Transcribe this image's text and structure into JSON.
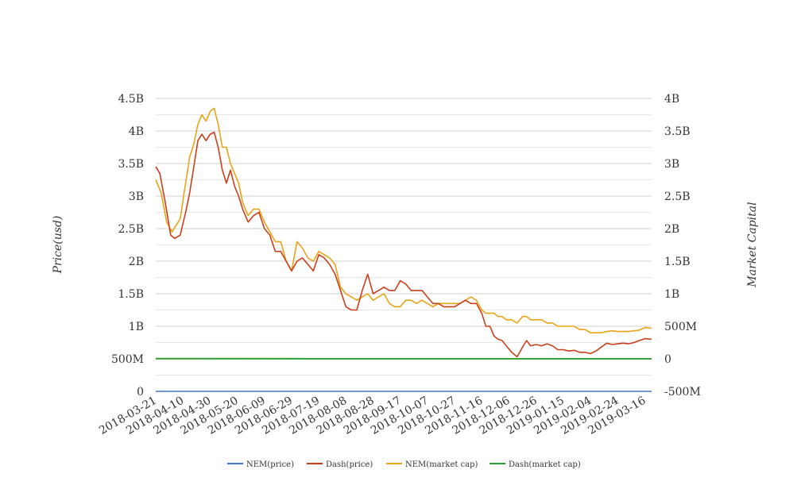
{
  "chart_data": {
    "type": "line",
    "title": "",
    "ylabel_left": "Price(usd)",
    "ylabel_right": "Market Capital",
    "grid": true,
    "legend_position": "bottom",
    "y_left": {
      "min": 0,
      "max": 4500000000,
      "ticks": [
        0,
        500000000,
        1000000000,
        1500000000,
        2000000000,
        2500000000,
        3000000000,
        3500000000,
        4000000000,
        4500000000
      ],
      "tick_labels": [
        "0",
        "500M",
        "1B",
        "1.5B",
        "2B",
        "2.5B",
        "3B",
        "3.5B",
        "4B",
        "4.5B"
      ]
    },
    "y_right": {
      "min": -500000000,
      "max": 4000000000,
      "ticks": [
        -500000000,
        0,
        500000000,
        1000000000,
        1500000000,
        2000000000,
        2500000000,
        3000000000,
        3500000000,
        4000000000
      ],
      "tick_labels": [
        "-500M",
        "0",
        "500M",
        "1B",
        "1.5B",
        "2B",
        "2.5B",
        "3B",
        "3.5B",
        "4B"
      ]
    },
    "x_axis": {
      "start": "2018-03-21",
      "end": "2019-03-21",
      "tick_labels": [
        "2018-03-21",
        "2018-04-10",
        "2018-04-30",
        "2018-05-20",
        "2018-06-09",
        "2018-06-29",
        "2018-07-19",
        "2018-08-08",
        "2018-08-28",
        "2018-09-17",
        "2018-10-07",
        "2018-10-27",
        "2018-11-16",
        "2018-12-06",
        "2018-12-26",
        "2019-01-15",
        "2019-02-04",
        "2019-02-24",
        "2019-03-16"
      ]
    },
    "series": [
      {
        "name": "NEM(price)",
        "axis": "left",
        "color": "#4472c4",
        "points": [
          [
            "2018-03-21",
            0.3
          ],
          [
            "2019-03-21",
            0.06
          ]
        ]
      },
      {
        "name": "Dash(price)",
        "axis": "left",
        "color": "#c8401a",
        "points": [
          [
            "2018-03-21",
            3450000000
          ],
          [
            "2018-03-24",
            3350000000
          ],
          [
            "2018-03-28",
            2900000000
          ],
          [
            "2018-04-01",
            2400000000
          ],
          [
            "2018-04-04",
            2350000000
          ],
          [
            "2018-04-08",
            2400000000
          ],
          [
            "2018-04-12",
            2750000000
          ],
          [
            "2018-04-15",
            3050000000
          ],
          [
            "2018-04-18",
            3450000000
          ],
          [
            "2018-04-21",
            3850000000
          ],
          [
            "2018-04-24",
            3950000000
          ],
          [
            "2018-04-27",
            3850000000
          ],
          [
            "2018-04-30",
            3950000000
          ],
          [
            "2018-05-03",
            3980000000
          ],
          [
            "2018-05-06",
            3750000000
          ],
          [
            "2018-05-09",
            3400000000
          ],
          [
            "2018-05-12",
            3200000000
          ],
          [
            "2018-05-15",
            3400000000
          ],
          [
            "2018-05-18",
            3150000000
          ],
          [
            "2018-05-21",
            3000000000
          ],
          [
            "2018-05-24",
            2800000000
          ],
          [
            "2018-05-28",
            2600000000
          ],
          [
            "2018-06-01",
            2700000000
          ],
          [
            "2018-06-05",
            2750000000
          ],
          [
            "2018-06-09",
            2500000000
          ],
          [
            "2018-06-13",
            2400000000
          ],
          [
            "2018-06-17",
            2150000000
          ],
          [
            "2018-06-21",
            2150000000
          ],
          [
            "2018-06-25",
            2000000000
          ],
          [
            "2018-06-29",
            1850000000
          ],
          [
            "2018-07-03",
            2000000000
          ],
          [
            "2018-07-07",
            2050000000
          ],
          [
            "2018-07-11",
            1950000000
          ],
          [
            "2018-07-15",
            1850000000
          ],
          [
            "2018-07-19",
            2100000000
          ],
          [
            "2018-07-23",
            2050000000
          ],
          [
            "2018-07-27",
            1950000000
          ],
          [
            "2018-07-31",
            1800000000
          ],
          [
            "2018-08-04",
            1550000000
          ],
          [
            "2018-08-08",
            1300000000
          ],
          [
            "2018-08-12",
            1250000000
          ],
          [
            "2018-08-16",
            1250000000
          ],
          [
            "2018-08-20",
            1550000000
          ],
          [
            "2018-08-24",
            1800000000
          ],
          [
            "2018-08-28",
            1500000000
          ],
          [
            "2018-09-01",
            1550000000
          ],
          [
            "2018-09-05",
            1600000000
          ],
          [
            "2018-09-09",
            1550000000
          ],
          [
            "2018-09-13",
            1550000000
          ],
          [
            "2018-09-17",
            1700000000
          ],
          [
            "2018-09-21",
            1650000000
          ],
          [
            "2018-09-25",
            1550000000
          ],
          [
            "2018-09-29",
            1550000000
          ],
          [
            "2018-10-03",
            1550000000
          ],
          [
            "2018-10-07",
            1450000000
          ],
          [
            "2018-10-11",
            1350000000
          ],
          [
            "2018-10-15",
            1350000000
          ],
          [
            "2018-10-19",
            1300000000
          ],
          [
            "2018-10-23",
            1300000000
          ],
          [
            "2018-10-27",
            1300000000
          ],
          [
            "2018-10-31",
            1350000000
          ],
          [
            "2018-11-04",
            1400000000
          ],
          [
            "2018-11-08",
            1350000000
          ],
          [
            "2018-11-12",
            1350000000
          ],
          [
            "2018-11-16",
            1200000000
          ],
          [
            "2018-11-19",
            1000000000
          ],
          [
            "2018-11-22",
            1000000000
          ],
          [
            "2018-11-25",
            850000000
          ],
          [
            "2018-11-28",
            800000000
          ],
          [
            "2018-12-01",
            780000000
          ],
          [
            "2018-12-04",
            700000000
          ],
          [
            "2018-12-08",
            600000000
          ],
          [
            "2018-12-12",
            530000000
          ],
          [
            "2018-12-16",
            680000000
          ],
          [
            "2018-12-19",
            780000000
          ],
          [
            "2018-12-22",
            700000000
          ],
          [
            "2018-12-26",
            720000000
          ],
          [
            "2018-12-30",
            700000000
          ],
          [
            "2019-01-03",
            730000000
          ],
          [
            "2019-01-07",
            700000000
          ],
          [
            "2019-01-11",
            640000000
          ],
          [
            "2019-01-15",
            640000000
          ],
          [
            "2019-01-19",
            620000000
          ],
          [
            "2019-01-23",
            630000000
          ],
          [
            "2019-01-27",
            600000000
          ],
          [
            "2019-01-31",
            600000000
          ],
          [
            "2019-02-04",
            580000000
          ],
          [
            "2019-02-08",
            620000000
          ],
          [
            "2019-02-12",
            680000000
          ],
          [
            "2019-02-16",
            740000000
          ],
          [
            "2019-02-20",
            720000000
          ],
          [
            "2019-02-24",
            730000000
          ],
          [
            "2019-02-28",
            740000000
          ],
          [
            "2019-03-04",
            730000000
          ],
          [
            "2019-03-08",
            750000000
          ],
          [
            "2019-03-12",
            780000000
          ],
          [
            "2019-03-16",
            810000000
          ],
          [
            "2019-03-21",
            800000000
          ]
        ]
      },
      {
        "name": "NEM(market cap)",
        "axis": "right",
        "color": "#e8a317",
        "points": [
          [
            "2018-03-21",
            2750000000
          ],
          [
            "2018-03-25",
            2550000000
          ],
          [
            "2018-03-29",
            2100000000
          ],
          [
            "2018-04-02",
            1950000000
          ],
          [
            "2018-04-05",
            2050000000
          ],
          [
            "2018-04-08",
            2150000000
          ],
          [
            "2018-04-12",
            2700000000
          ],
          [
            "2018-04-15",
            3100000000
          ],
          [
            "2018-04-18",
            3300000000
          ],
          [
            "2018-04-21",
            3600000000
          ],
          [
            "2018-04-24",
            3750000000
          ],
          [
            "2018-04-27",
            3650000000
          ],
          [
            "2018-04-30",
            3800000000
          ],
          [
            "2018-05-03",
            3850000000
          ],
          [
            "2018-05-06",
            3600000000
          ],
          [
            "2018-05-09",
            3250000000
          ],
          [
            "2018-05-12",
            3250000000
          ],
          [
            "2018-05-15",
            3000000000
          ],
          [
            "2018-05-18",
            2850000000
          ],
          [
            "2018-05-21",
            2700000000
          ],
          [
            "2018-05-24",
            2400000000
          ],
          [
            "2018-05-28",
            2200000000
          ],
          [
            "2018-06-01",
            2300000000
          ],
          [
            "2018-06-05",
            2300000000
          ],
          [
            "2018-06-09",
            2100000000
          ],
          [
            "2018-06-13",
            1950000000
          ],
          [
            "2018-06-17",
            1800000000
          ],
          [
            "2018-06-21",
            1800000000
          ],
          [
            "2018-06-25",
            1500000000
          ],
          [
            "2018-06-29",
            1350000000
          ],
          [
            "2018-07-03",
            1800000000
          ],
          [
            "2018-07-07",
            1700000000
          ],
          [
            "2018-07-11",
            1550000000
          ],
          [
            "2018-07-15",
            1500000000
          ],
          [
            "2018-07-19",
            1650000000
          ],
          [
            "2018-07-23",
            1600000000
          ],
          [
            "2018-07-27",
            1550000000
          ],
          [
            "2018-07-31",
            1450000000
          ],
          [
            "2018-08-04",
            1100000000
          ],
          [
            "2018-08-08",
            1000000000
          ],
          [
            "2018-08-12",
            950000000
          ],
          [
            "2018-08-16",
            900000000
          ],
          [
            "2018-08-20",
            950000000
          ],
          [
            "2018-08-24",
            1000000000
          ],
          [
            "2018-08-28",
            900000000
          ],
          [
            "2018-09-01",
            950000000
          ],
          [
            "2018-09-05",
            1000000000
          ],
          [
            "2018-09-09",
            850000000
          ],
          [
            "2018-09-13",
            800000000
          ],
          [
            "2018-09-17",
            800000000
          ],
          [
            "2018-09-21",
            900000000
          ],
          [
            "2018-09-25",
            900000000
          ],
          [
            "2018-09-29",
            850000000
          ],
          [
            "2018-10-03",
            900000000
          ],
          [
            "2018-10-07",
            850000000
          ],
          [
            "2018-10-11",
            800000000
          ],
          [
            "2018-10-15",
            850000000
          ],
          [
            "2018-10-19",
            850000000
          ],
          [
            "2018-10-23",
            850000000
          ],
          [
            "2018-10-27",
            850000000
          ],
          [
            "2018-10-31",
            850000000
          ],
          [
            "2018-11-04",
            900000000
          ],
          [
            "2018-11-08",
            950000000
          ],
          [
            "2018-11-12",
            900000000
          ],
          [
            "2018-11-16",
            750000000
          ],
          [
            "2018-11-19",
            700000000
          ],
          [
            "2018-11-22",
            700000000
          ],
          [
            "2018-11-25",
            700000000
          ],
          [
            "2018-11-28",
            650000000
          ],
          [
            "2018-12-01",
            650000000
          ],
          [
            "2018-12-04",
            600000000
          ],
          [
            "2018-12-08",
            600000000
          ],
          [
            "2018-12-12",
            550000000
          ],
          [
            "2018-12-16",
            650000000
          ],
          [
            "2018-12-19",
            650000000
          ],
          [
            "2018-12-22",
            600000000
          ],
          [
            "2018-12-26",
            600000000
          ],
          [
            "2018-12-30",
            600000000
          ],
          [
            "2019-01-03",
            550000000
          ],
          [
            "2019-01-07",
            550000000
          ],
          [
            "2019-01-11",
            500000000
          ],
          [
            "2019-01-15",
            500000000
          ],
          [
            "2019-01-19",
            500000000
          ],
          [
            "2019-01-23",
            500000000
          ],
          [
            "2019-01-27",
            450000000
          ],
          [
            "2019-01-31",
            450000000
          ],
          [
            "2019-02-04",
            400000000
          ],
          [
            "2019-02-08",
            400000000
          ],
          [
            "2019-02-12",
            400000000
          ],
          [
            "2019-02-16",
            420000000
          ],
          [
            "2019-02-20",
            430000000
          ],
          [
            "2019-02-24",
            420000000
          ],
          [
            "2019-02-28",
            420000000
          ],
          [
            "2019-03-04",
            420000000
          ],
          [
            "2019-03-08",
            430000000
          ],
          [
            "2019-03-12",
            440000000
          ],
          [
            "2019-03-16",
            480000000
          ],
          [
            "2019-03-21",
            470000000
          ]
        ]
      },
      {
        "name": "Dash(market cap)",
        "axis": "right",
        "color": "#2ca02c",
        "points": [
          [
            "2018-03-21",
            3000000
          ],
          [
            "2019-03-21",
            1000000
          ]
        ]
      }
    ]
  }
}
